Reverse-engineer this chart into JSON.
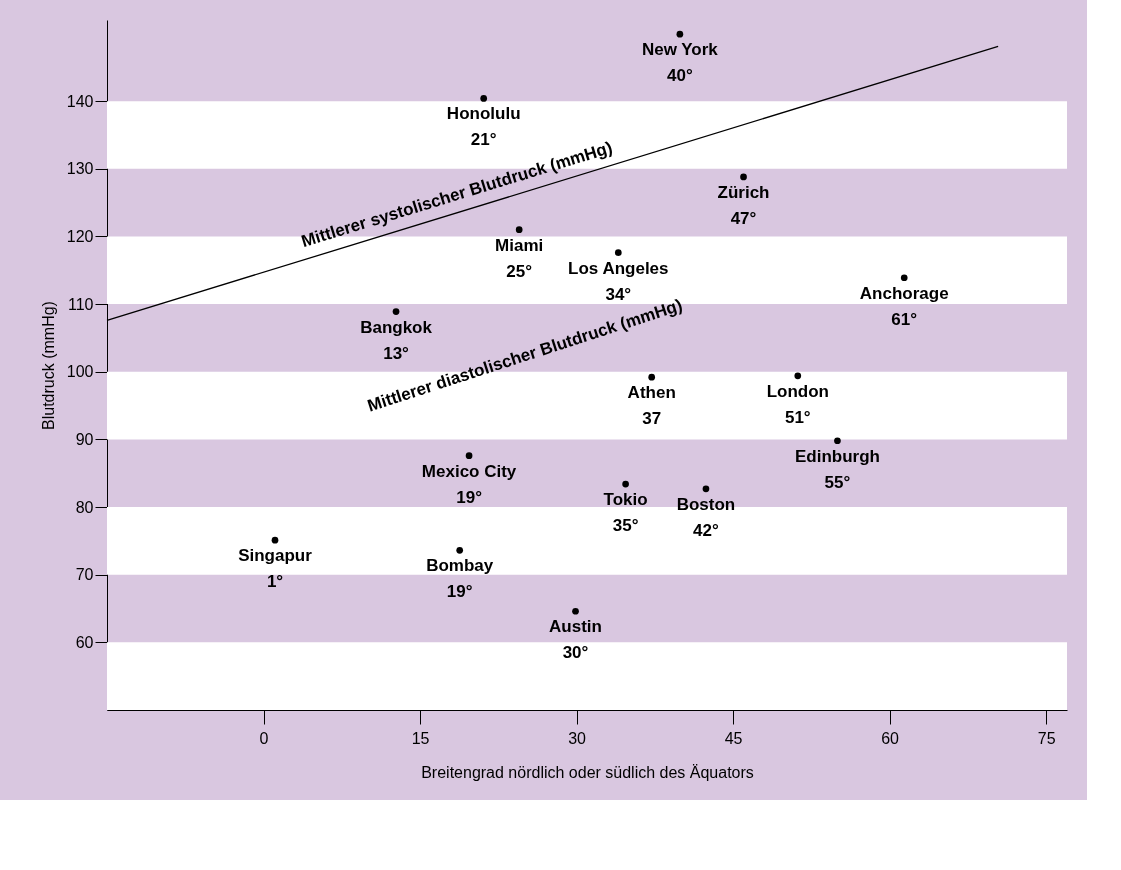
{
  "chart_data": {
    "type": "scatter",
    "xlabel": "Breitengrad nördlich oder südlich des Äquators",
    "ylabel": "Blutdruck (mmHg)",
    "xlim": [
      -15,
      77
    ],
    "xticks": [
      0,
      15,
      30,
      45,
      60,
      75
    ],
    "ylim": [
      50,
      152
    ],
    "yticks": [
      60,
      70,
      80,
      90,
      100,
      110,
      120,
      130,
      140
    ],
    "grid": false,
    "bands": [
      {
        "axis": "y",
        "from": 50,
        "to": 60,
        "color": "#ffffff"
      },
      {
        "axis": "y",
        "from": 70,
        "to": 80,
        "color": "#ffffff"
      },
      {
        "axis": "y",
        "from": 90,
        "to": 100,
        "color": "#ffffff"
      },
      {
        "axis": "y",
        "from": 110,
        "to": 120,
        "color": "#ffffff"
      },
      {
        "axis": "y",
        "from": 130,
        "to": 140,
        "color": "#ffffff"
      }
    ],
    "x": [
      1.1,
      12.7,
      21.1,
      24.5,
      39.9,
      46.0,
      34.0,
      61.4,
      37.2,
      51.2,
      55.0,
      19.7,
      34.7,
      42.4,
      18.8,
      29.9
    ],
    "series": [
      {
        "color": "#000000",
        "marker": "circle",
        "values": [
          75.1,
          108.9,
          140.4,
          121.0,
          149.9,
          128.8,
          117.6,
          113.9,
          99.2,
          99.4,
          89.8,
          87.6,
          83.4,
          82.7,
          73.6,
          64.6
        ]
      },
      {
        "type": "line",
        "color": "#000000",
        "line_style": "solid",
        "x": [
          -15,
          70.4
        ],
        "values": [
          107.6,
          148.1
        ]
      }
    ],
    "annotations": [
      {
        "text": "Singapur\n1°",
        "x": 1.1,
        "y": 75.1
      },
      {
        "text": "Bangkok\n13°",
        "x": 12.7,
        "y": 108.9
      },
      {
        "text": "Honolulu\n21°",
        "x": 21.1,
        "y": 140.4
      },
      {
        "text": "Miami\n25°",
        "x": 24.5,
        "y": 121.0
      },
      {
        "text": "New York\n40°",
        "x": 39.9,
        "y": 149.9
      },
      {
        "text": "Zürich\n47°",
        "x": 46.0,
        "y": 128.8
      },
      {
        "text": "Los Angeles\n34°",
        "x": 34.0,
        "y": 117.6
      },
      {
        "text": "Anchorage\n61°",
        "x": 61.4,
        "y": 113.9
      },
      {
        "text": "Athen\n37",
        "x": 37.2,
        "y": 99.2
      },
      {
        "text": "London\n51°",
        "x": 51.2,
        "y": 99.4
      },
      {
        "text": "Edinburgh\n55°",
        "x": 55.0,
        "y": 89.8
      },
      {
        "text": "Mexico City\n19°",
        "x": 19.7,
        "y": 87.6
      },
      {
        "text": "Tokio\n35°",
        "x": 34.7,
        "y": 83.4
      },
      {
        "text": "Boston\n42°",
        "x": 42.4,
        "y": 82.7
      },
      {
        "text": "Bombay\n19°",
        "x": 18.8,
        "y": 73.6
      },
      {
        "text": "Austin\n30°",
        "x": 29.9,
        "y": 64.6
      },
      "Mittlerer systolischer Blutdruck (mmHg)",
      "Mittlerer diastolischer Blutdruck (mmHg)"
    ]
  }
}
